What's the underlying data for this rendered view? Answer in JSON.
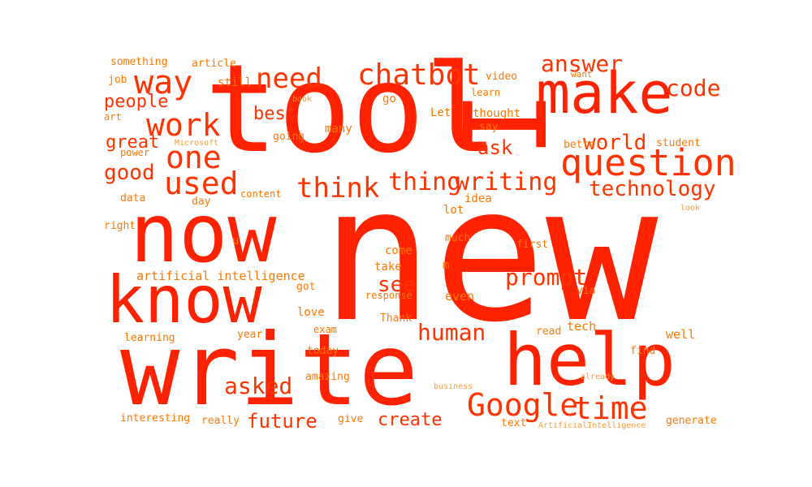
{
  "colors": {
    "big": "#ff2200",
    "mid": "#ff3300",
    "small": "#ff7700",
    "tiny": "#ff9933"
  },
  "words": [
    {
      "text": "new",
      "level": "big"
    },
    {
      "text": "tool",
      "level": "big"
    },
    {
      "text": "write",
      "level": "big"
    },
    {
      "text": "now",
      "level": "big"
    },
    {
      "text": "help",
      "level": "big"
    },
    {
      "text": "make",
      "level": "big"
    },
    {
      "text": "know",
      "level": "big"
    },
    {
      "text": "I",
      "level": "big"
    },
    {
      "text": "question",
      "level": "mid"
    },
    {
      "text": "Google",
      "level": "mid"
    },
    {
      "text": "time",
      "level": "mid"
    },
    {
      "text": "chatbot",
      "level": "mid"
    },
    {
      "text": "way",
      "level": "mid"
    },
    {
      "text": "work",
      "level": "mid"
    },
    {
      "text": "one",
      "level": "mid"
    },
    {
      "text": "used",
      "level": "mid"
    },
    {
      "text": "think",
      "level": "mid"
    },
    {
      "text": "thing",
      "level": "mid"
    },
    {
      "text": "writing",
      "level": "mid"
    },
    {
      "text": "need",
      "level": "mid"
    },
    {
      "text": "answer",
      "level": "mid"
    },
    {
      "text": "code",
      "level": "mid"
    },
    {
      "text": "technology",
      "level": "mid"
    },
    {
      "text": "world",
      "level": "mid"
    },
    {
      "text": "prompt",
      "level": "mid"
    },
    {
      "text": "see",
      "level": "mid"
    },
    {
      "text": "human",
      "level": "mid"
    },
    {
      "text": "asked",
      "level": "mid"
    },
    {
      "text": "future",
      "level": "mid"
    },
    {
      "text": "create",
      "level": "mid"
    },
    {
      "text": "good",
      "level": "mid"
    },
    {
      "text": "great",
      "level": "mid"
    },
    {
      "text": "people",
      "level": "mid"
    },
    {
      "text": "best",
      "level": "mid"
    },
    {
      "text": "ask",
      "level": "mid"
    },
    {
      "text": "something",
      "level": "small"
    },
    {
      "text": "article",
      "level": "small"
    },
    {
      "text": "job",
      "level": "small"
    },
    {
      "text": "still",
      "level": "small"
    },
    {
      "text": "art",
      "level": "small"
    },
    {
      "text": "Microsoft",
      "level": "tiny"
    },
    {
      "text": "power",
      "level": "small"
    },
    {
      "text": "going",
      "level": "small"
    },
    {
      "text": "many",
      "level": "small"
    },
    {
      "text": "book",
      "level": "tiny"
    },
    {
      "text": "go",
      "level": "small"
    },
    {
      "text": "Let",
      "level": "small"
    },
    {
      "text": "learn",
      "level": "small"
    },
    {
      "text": "video",
      "level": "small"
    },
    {
      "text": "want",
      "level": "small"
    },
    {
      "text": "thought",
      "level": "small"
    },
    {
      "text": "say",
      "level": "small"
    },
    {
      "text": "better",
      "level": "small"
    },
    {
      "text": "student",
      "level": "small"
    },
    {
      "text": "data",
      "level": "small"
    },
    {
      "text": "day",
      "level": "small"
    },
    {
      "text": "content",
      "level": "small"
    },
    {
      "text": "idea",
      "level": "small"
    },
    {
      "text": "lot",
      "level": "small"
    },
    {
      "text": "look",
      "level": "tiny"
    },
    {
      "text": "right",
      "level": "small"
    },
    {
      "text": "u",
      "level": "small"
    },
    {
      "text": "much",
      "level": "small"
    },
    {
      "text": "first",
      "level": "small"
    },
    {
      "text": "come",
      "level": "small"
    },
    {
      "text": "m",
      "level": "small"
    },
    {
      "text": "take",
      "level": "small"
    },
    {
      "text": "artificial intelligence",
      "level": "small"
    },
    {
      "text": "got",
      "level": "small"
    },
    {
      "text": "response",
      "level": "small"
    },
    {
      "text": "even",
      "level": "small"
    },
    {
      "text": "via",
      "level": "small"
    },
    {
      "text": "love",
      "level": "small"
    },
    {
      "text": "Thank",
      "level": "small"
    },
    {
      "text": "exam",
      "level": "small"
    },
    {
      "text": "learning",
      "level": "small"
    },
    {
      "text": "year",
      "level": "small"
    },
    {
      "text": "read",
      "level": "small"
    },
    {
      "text": "tech",
      "level": "small"
    },
    {
      "text": "well",
      "level": "small"
    },
    {
      "text": "today",
      "level": "small"
    },
    {
      "text": "find",
      "level": "small"
    },
    {
      "text": "amazing",
      "level": "small"
    },
    {
      "text": "already",
      "level": "tiny"
    },
    {
      "text": "business",
      "level": "tiny"
    },
    {
      "text": "interesting",
      "level": "small"
    },
    {
      "text": "really",
      "level": "small"
    },
    {
      "text": "give",
      "level": "small"
    },
    {
      "text": "text",
      "level": "small"
    },
    {
      "text": "ArtificialIntelligence",
      "level": "tiny"
    },
    {
      "text": "generate",
      "level": "small"
    }
  ]
}
